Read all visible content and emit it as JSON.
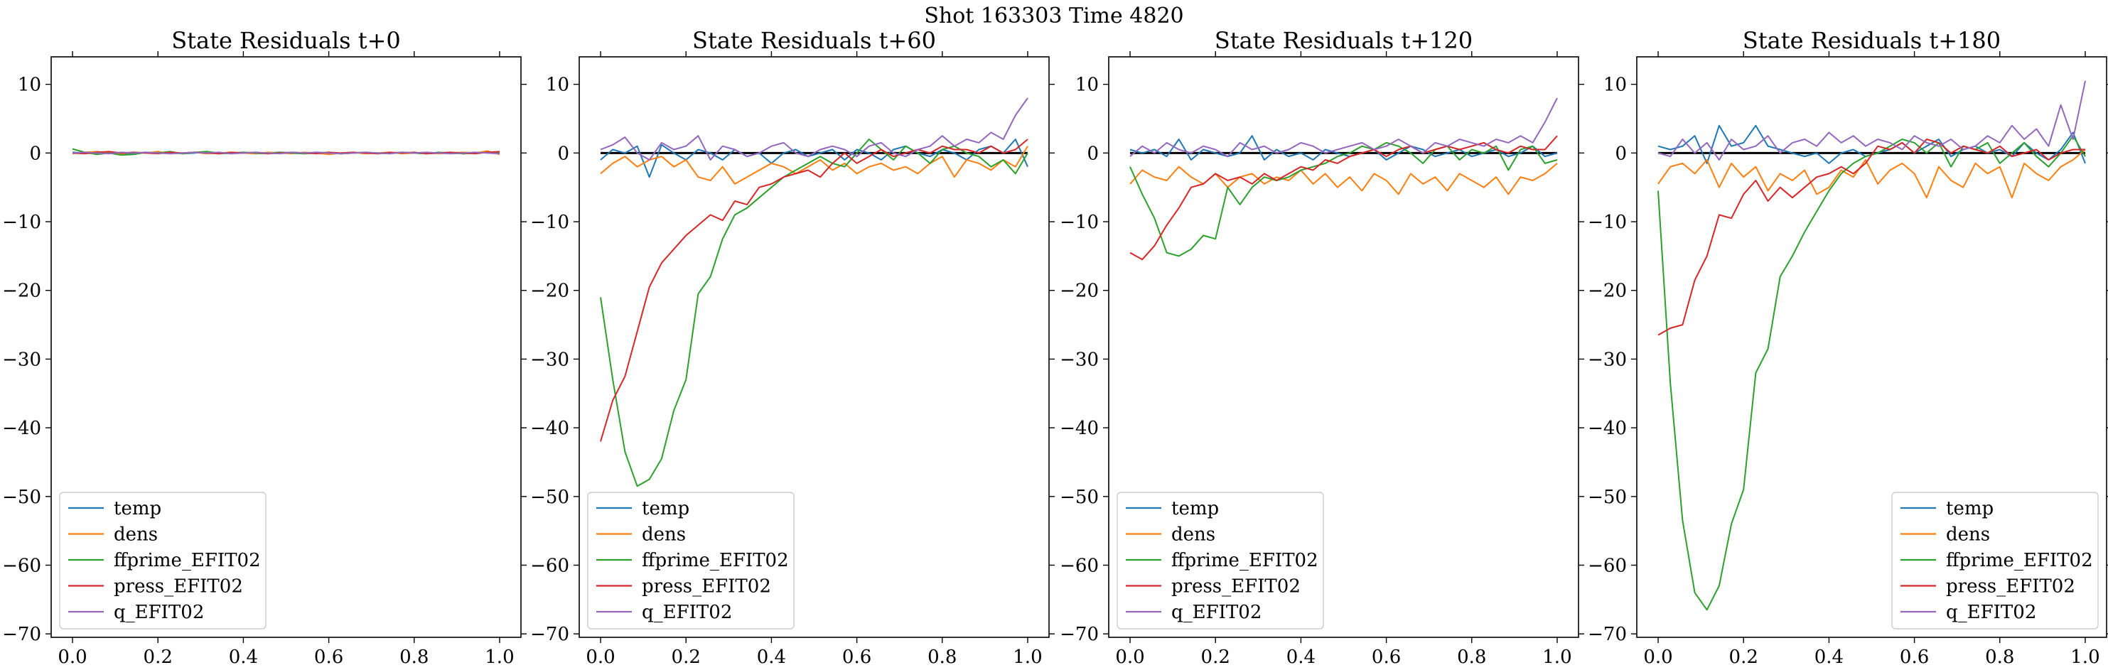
{
  "suptitle": "Shot 163303   Time 4820",
  "colors": {
    "temp": "#1f77b4",
    "dens": "#ff7f0e",
    "ffprime_EFIT02": "#2ca02c",
    "press_EFIT02": "#d62728",
    "q_EFIT02": "#9467bd",
    "zero_line": "#000000"
  },
  "chart_data": [
    {
      "type": "line",
      "title": "State Residuals t+0",
      "xlabel": "",
      "ylabel": "",
      "xlim": [
        -0.05,
        1.05
      ],
      "ylim": [
        -70.5,
        14
      ],
      "x_ticks": [
        0.0,
        0.2,
        0.4,
        0.6,
        0.8,
        1.0
      ],
      "x_tick_labels": [
        "0.0",
        "0.2",
        "0.4",
        "0.6",
        "0.8",
        "1.0"
      ],
      "y_ticks": [
        10,
        0,
        -10,
        -20,
        -30,
        -40,
        -50,
        -60,
        -70
      ],
      "y_tick_labels": [
        "10",
        "0",
        "−10",
        "−20",
        "−30",
        "−40",
        "−50",
        "−60",
        "−70"
      ],
      "legend_position": "lower-left",
      "zero_line": false,
      "series": [
        {
          "name": "temp",
          "y": [
            0.1,
            0.0,
            -0.1,
            0.1,
            0.0,
            -0.2,
            0.1,
            0.0,
            0.1,
            -0.1,
            0.0,
            0.2,
            -0.1,
            0.0,
            0.1,
            -0.1,
            0.0,
            0.1,
            0.0,
            -0.1,
            0.1,
            0.0,
            -0.1,
            0.0,
            0.1,
            -0.1,
            0.0,
            0.1,
            0.0,
            -0.1,
            0.0,
            0.1,
            -0.1,
            0.0,
            0.2,
            -0.1
          ]
        },
        {
          "name": "dens",
          "y": [
            -0.1,
            0.1,
            0.2,
            0.0,
            -0.1,
            0.1,
            0.0,
            0.2,
            -0.1,
            0.0,
            0.1,
            -0.1,
            0.0,
            0.1,
            0.0,
            -0.1,
            0.1,
            0.0,
            -0.1,
            0.1,
            0.0,
            -0.2,
            0.0,
            0.1,
            -0.1,
            0.0,
            0.1,
            -0.1,
            0.0,
            0.1,
            -0.1,
            0.0,
            0.1,
            0.0,
            0.3,
            -0.2
          ]
        },
        {
          "name": "ffprime_EFIT02",
          "y": [
            0.6,
            0.1,
            -0.2,
            0.0,
            -0.3,
            -0.2,
            0.1,
            0.0,
            0.2,
            -0.1,
            0.1,
            0.2,
            0.0,
            -0.1,
            0.1,
            0.0,
            -0.1,
            0.1,
            0.0,
            -0.1,
            0.0,
            0.1,
            -0.1,
            0.0,
            0.1,
            0.0,
            -0.1,
            0.1,
            0.0,
            -0.1,
            0.1,
            0.0,
            -0.1,
            0.0,
            0.1,
            0.0
          ]
        },
        {
          "name": "press_EFIT02",
          "y": [
            0.0,
            -0.1,
            0.1,
            0.2,
            0.0,
            0.1,
            0.0,
            -0.1,
            0.1,
            0.0,
            0.1,
            0.0,
            -0.1,
            0.1,
            0.0,
            0.1,
            -0.1,
            0.0,
            0.1,
            0.0,
            -0.1,
            0.1,
            0.0,
            0.1,
            0.0,
            -0.1,
            0.1,
            0.0,
            0.1,
            -0.1,
            0.0,
            0.1,
            0.0,
            -0.1,
            0.1,
            0.2
          ]
        },
        {
          "name": "q_EFIT02",
          "y": [
            0.0,
            0.1,
            0.0,
            -0.1,
            0.1,
            0.0,
            0.1,
            0.0,
            -0.1,
            0.0,
            0.1,
            0.0,
            0.1,
            -0.1,
            0.0,
            0.1,
            0.0,
            -0.1,
            0.1,
            0.0,
            0.1,
            0.0,
            -0.1,
            0.0,
            0.1,
            0.0,
            -0.1,
            0.1,
            0.0,
            0.1,
            0.0,
            -0.1,
            0.0,
            0.1,
            0.0,
            -0.1
          ]
        }
      ]
    },
    {
      "type": "line",
      "title": "State Residuals t+60",
      "xlabel": "",
      "ylabel": "",
      "xlim": [
        -0.05,
        1.05
      ],
      "ylim": [
        -70.5,
        14
      ],
      "x_ticks": [
        0.0,
        0.2,
        0.4,
        0.6,
        0.8,
        1.0
      ],
      "x_tick_labels": [
        "0.0",
        "0.2",
        "0.4",
        "0.6",
        "0.8",
        "1.0"
      ],
      "y_ticks": [
        10,
        0,
        -10,
        -20,
        -30,
        -40,
        -50,
        -60,
        -70
      ],
      "y_tick_labels": [
        "10",
        "0",
        "−10",
        "−20",
        "−30",
        "−40",
        "−50",
        "−60",
        "−70"
      ],
      "legend_position": "lower-left",
      "zero_line": true,
      "series": [
        {
          "name": "temp",
          "y": [
            -1.0,
            0.5,
            0.0,
            1.0,
            -3.5,
            1.2,
            0.0,
            -1.0,
            0.5,
            0.0,
            -1.0,
            0.5,
            -0.5,
            0.0,
            -1.5,
            0.0,
            0.5,
            -0.5,
            0.0,
            0.5,
            -1.0,
            0.5,
            0.0,
            -1.0,
            0.5,
            1.0,
            0.0,
            -0.5,
            0.5,
            0.0,
            -1.0,
            0.5,
            1.0,
            0.0,
            2.0,
            -2.0
          ]
        },
        {
          "name": "dens",
          "y": [
            -3.0,
            -1.5,
            -0.5,
            -2.0,
            -1.0,
            -0.5,
            -2.0,
            -1.0,
            -3.5,
            -4.0,
            -2.0,
            -4.5,
            -3.5,
            -2.5,
            -1.5,
            -2.0,
            -3.0,
            -2.0,
            -1.0,
            -2.5,
            -1.5,
            -3.0,
            -2.0,
            -1.5,
            -2.5,
            -2.0,
            -3.0,
            -1.5,
            -0.5,
            -3.5,
            -1.0,
            -1.5,
            -2.5,
            -1.0,
            -2.0,
            1.0
          ]
        },
        {
          "name": "ffprime_EFIT02",
          "y": [
            -21.0,
            -33.0,
            -43.5,
            -48.5,
            -47.5,
            -44.5,
            -37.5,
            -33.0,
            -20.5,
            -18.0,
            -12.5,
            -9.0,
            -8.0,
            -6.5,
            -5.0,
            -3.5,
            -2.5,
            -1.5,
            -0.5,
            -1.5,
            -2.0,
            0.0,
            2.0,
            0.5,
            -1.0,
            1.0,
            0.0,
            -1.5,
            0.5,
            1.0,
            0.0,
            -0.5,
            -2.0,
            -1.0,
            -3.0,
            0.0
          ]
        },
        {
          "name": "press_EFIT02",
          "y": [
            -42.0,
            -36.0,
            -32.5,
            -26.0,
            -19.5,
            -16.0,
            -14.0,
            -12.0,
            -10.5,
            -9.0,
            -9.8,
            -7.0,
            -7.5,
            -5.0,
            -4.5,
            -3.5,
            -3.0,
            -2.5,
            -3.5,
            -1.5,
            0.0,
            -1.5,
            -0.5,
            0.5,
            -0.5,
            0.0,
            0.5,
            0.0,
            1.0,
            0.5,
            0.5,
            0.0,
            1.0,
            0.0,
            0.5,
            2.0
          ]
        },
        {
          "name": "q_EFIT02",
          "y": [
            0.5,
            1.2,
            2.3,
            0.0,
            -1.0,
            1.5,
            0.5,
            1.0,
            2.5,
            -1.0,
            1.0,
            0.5,
            -0.5,
            0.0,
            1.0,
            1.5,
            0.0,
            -0.5,
            0.5,
            1.0,
            0.5,
            -0.5,
            1.0,
            1.5,
            0.0,
            -0.5,
            0.5,
            1.0,
            2.5,
            1.0,
            2.0,
            1.5,
            3.0,
            2.0,
            5.5,
            8.0
          ]
        }
      ]
    },
    {
      "type": "line",
      "title": "State Residuals t+120",
      "xlabel": "",
      "ylabel": "",
      "xlim": [
        -0.05,
        1.05
      ],
      "ylim": [
        -70.5,
        14
      ],
      "x_ticks": [
        0.0,
        0.2,
        0.4,
        0.6,
        0.8,
        1.0
      ],
      "x_tick_labels": [
        "0.0",
        "0.2",
        "0.4",
        "0.6",
        "0.8",
        "1.0"
      ],
      "y_ticks": [
        10,
        0,
        -10,
        -20,
        -30,
        -40,
        -50,
        -60,
        -70
      ],
      "y_tick_labels": [
        "10",
        "0",
        "−10",
        "−20",
        "−30",
        "−40",
        "−50",
        "−60",
        "−70"
      ],
      "legend_position": "lower-left",
      "zero_line": true,
      "series": [
        {
          "name": "temp",
          "y": [
            0.5,
            0.0,
            0.5,
            -0.5,
            2.0,
            -1.0,
            0.5,
            0.0,
            -0.5,
            0.0,
            2.5,
            -1.0,
            0.5,
            -0.5,
            0.0,
            -1.0,
            0.5,
            0.0,
            -0.5,
            0.0,
            0.5,
            -1.0,
            0.0,
            1.0,
            0.5,
            -0.5,
            0.0,
            0.5,
            -0.5,
            0.0,
            0.5,
            -0.5,
            0.0,
            1.0,
            -0.5,
            0.0
          ]
        },
        {
          "name": "dens",
          "y": [
            -4.5,
            -2.5,
            -3.5,
            -4.0,
            -2.0,
            -3.5,
            -4.5,
            -3.0,
            -5.0,
            -3.5,
            -3.0,
            -4.5,
            -3.5,
            -4.0,
            -2.5,
            -4.5,
            -3.0,
            -5.0,
            -3.5,
            -5.5,
            -3.0,
            -4.0,
            -6.0,
            -3.0,
            -4.5,
            -3.5,
            -5.5,
            -3.0,
            -4.0,
            -5.0,
            -3.5,
            -6.0,
            -3.5,
            -4.0,
            -3.0,
            -1.5
          ]
        },
        {
          "name": "ffprime_EFIT02",
          "y": [
            -2.0,
            -6.0,
            -9.5,
            -14.5,
            -15.0,
            -14.0,
            -12.0,
            -12.5,
            -5.0,
            -7.5,
            -5.0,
            -3.5,
            -4.0,
            -3.5,
            -2.5,
            -2.0,
            -1.5,
            -0.5,
            0.0,
            1.0,
            0.5,
            1.5,
            1.0,
            0.0,
            -1.5,
            0.5,
            1.0,
            -1.0,
            0.5,
            0.0,
            1.0,
            -2.5,
            0.5,
            1.0,
            -1.5,
            -1.0
          ]
        },
        {
          "name": "press_EFIT02",
          "y": [
            -14.5,
            -15.5,
            -13.5,
            -10.5,
            -8.0,
            -5.0,
            -4.5,
            -3.0,
            -4.0,
            -3.5,
            -4.5,
            -3.0,
            -4.0,
            -3.0,
            -2.0,
            -2.5,
            -1.0,
            -1.5,
            -0.5,
            0.0,
            0.5,
            -0.5,
            0.5,
            1.0,
            0.0,
            0.5,
            1.0,
            0.5,
            1.0,
            1.5,
            0.5,
            0.0,
            1.0,
            0.5,
            0.5,
            2.5
          ]
        },
        {
          "name": "q_EFIT02",
          "y": [
            -0.5,
            1.0,
            0.0,
            1.5,
            0.5,
            0.0,
            1.0,
            0.5,
            -0.5,
            1.5,
            0.5,
            1.0,
            0.0,
            0.5,
            1.5,
            1.0,
            0.0,
            0.5,
            1.0,
            1.5,
            0.5,
            1.0,
            2.0,
            1.0,
            0.0,
            1.5,
            1.0,
            2.0,
            1.5,
            1.0,
            2.0,
            1.5,
            2.5,
            1.5,
            4.5,
            8.0
          ]
        }
      ]
    },
    {
      "type": "line",
      "title": "State Residuals t+180",
      "xlabel": "",
      "ylabel": "",
      "xlim": [
        -0.05,
        1.05
      ],
      "ylim": [
        -70.5,
        14
      ],
      "x_ticks": [
        0.0,
        0.2,
        0.4,
        0.6,
        0.8,
        1.0
      ],
      "x_tick_labels": [
        "0.0",
        "0.2",
        "0.4",
        "0.6",
        "0.8",
        "1.0"
      ],
      "y_ticks": [
        10,
        0,
        -10,
        -20,
        -30,
        -40,
        -50,
        -60,
        -70
      ],
      "y_tick_labels": [
        "10",
        "0",
        "−10",
        "−20",
        "−30",
        "−40",
        "−50",
        "−60",
        "−70"
      ],
      "legend_position": "lower-right",
      "zero_line": true,
      "series": [
        {
          "name": "temp",
          "y": [
            1.0,
            0.5,
            1.0,
            2.5,
            -1.5,
            4.0,
            1.0,
            1.5,
            4.0,
            1.0,
            0.5,
            0.0,
            -0.5,
            0.0,
            -1.5,
            0.0,
            0.5,
            -0.5,
            0.0,
            0.5,
            1.5,
            0.0,
            1.0,
            2.0,
            -0.5,
            0.5,
            1.0,
            0.0,
            0.5,
            -0.5,
            1.5,
            0.0,
            -1.0,
            0.5,
            3.0,
            -1.5
          ]
        },
        {
          "name": "dens",
          "y": [
            -4.5,
            -2.0,
            -1.5,
            -3.0,
            -1.0,
            -5.0,
            -1.5,
            -3.5,
            -2.0,
            -5.5,
            -3.0,
            -4.0,
            -2.5,
            -6.0,
            -5.0,
            -2.5,
            -3.5,
            -1.0,
            -4.5,
            -2.5,
            -1.5,
            -3.0,
            -6.5,
            -2.0,
            -4.0,
            -5.0,
            -1.5,
            -3.0,
            -2.0,
            -6.5,
            -1.5,
            -3.0,
            -4.0,
            -2.0,
            -1.0,
            0.5
          ]
        },
        {
          "name": "ffprime_EFIT02",
          "y": [
            -5.5,
            -33.5,
            -53.5,
            -64.0,
            -66.5,
            -63.0,
            -54.0,
            -49.0,
            -32.0,
            -28.5,
            -18.0,
            -15.0,
            -11.5,
            -8.5,
            -5.5,
            -3.0,
            -1.5,
            -0.5,
            0.0,
            1.0,
            2.0,
            1.5,
            0.0,
            1.5,
            -2.0,
            1.0,
            0.5,
            1.5,
            -1.5,
            0.0,
            1.5,
            -0.5,
            -2.0,
            0.0,
            2.5,
            -0.5
          ]
        },
        {
          "name": "press_EFIT02",
          "y": [
            -26.5,
            -25.5,
            -25.0,
            -18.5,
            -15.0,
            -9.0,
            -9.5,
            -6.0,
            -4.0,
            -7.0,
            -5.0,
            -6.5,
            -5.0,
            -3.5,
            -3.0,
            -2.0,
            -3.0,
            -1.5,
            1.0,
            0.5,
            1.5,
            0.0,
            2.0,
            1.5,
            0.0,
            1.0,
            0.5,
            0.0,
            1.0,
            -0.5,
            0.0,
            0.5,
            -1.0,
            0.0,
            0.5,
            0.5
          ]
        },
        {
          "name": "q_EFIT02",
          "y": [
            0.0,
            -0.5,
            2.0,
            0.0,
            1.5,
            -1.0,
            2.0,
            0.5,
            1.0,
            2.5,
            0.0,
            1.5,
            2.0,
            1.0,
            3.0,
            1.5,
            2.5,
            1.0,
            2.0,
            1.5,
            0.5,
            2.5,
            1.5,
            1.0,
            2.0,
            0.5,
            1.0,
            2.5,
            1.5,
            4.0,
            2.0,
            3.5,
            1.0,
            7.0,
            2.0,
            10.5
          ]
        }
      ]
    }
  ]
}
